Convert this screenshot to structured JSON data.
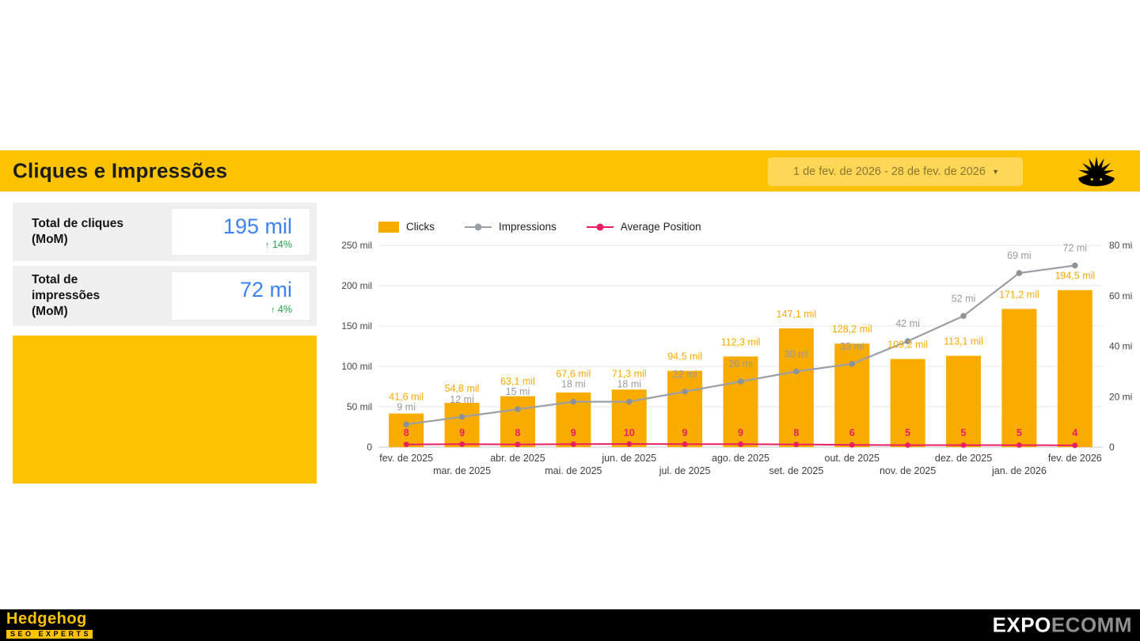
{
  "theme": {
    "yellow": "#FDC300",
    "bar_orange": "#F9AB00",
    "value_blue": "#3C82F4",
    "delta_green": "#1FA447",
    "line_gray": "#9AA0A6",
    "pink": "#E91E63"
  },
  "header": {
    "title": "Cliques e Impressões",
    "date_range": "1 de fev. de 2026 - 28 de fev. de 2026",
    "caret_icon": "▼"
  },
  "scorecards": [
    {
      "label": "Total de cliques (MoM)",
      "value": "195 mil",
      "delta_arrow": "↑",
      "delta": "14%"
    },
    {
      "label": "Total de impressões (MoM)",
      "value": "72 mi",
      "delta_arrow": "↑",
      "delta": "4%"
    }
  ],
  "legend": [
    {
      "label": "Clicks"
    },
    {
      "label": "Impressions"
    },
    {
      "label": "Average Position"
    }
  ],
  "chart_data": {
    "type": "combo",
    "categories": [
      "fev. de 2025",
      "mar. de 2025",
      "abr. de 2025",
      "mai. de 2025",
      "jun. de 2025",
      "jul. de 2025",
      "ago. de 2025",
      "set. de 2025",
      "out. de 2025",
      "nov. de 2025",
      "dez. de 2025",
      "jan. de 2026",
      "fev. de 2026"
    ],
    "series": [
      {
        "name": "Clicks",
        "type": "bar",
        "axis": "left",
        "unit": "mil",
        "values": [
          41.6,
          54.8,
          63.1,
          67.6,
          71.3,
          94.5,
          112.3,
          147.1,
          128.2,
          109.2,
          113.1,
          171.2,
          194.5
        ],
        "labels": [
          "41,6 mil",
          "54,8 mil",
          "63,1 mil",
          "67,6 mil",
          "71,3 mil",
          "94,5 mil",
          "112,3 mil",
          "147,1 mil",
          "128,2 mil",
          "109,2 mil",
          "113,1 mil",
          "171,2 mil",
          "194,5 mil"
        ]
      },
      {
        "name": "Impressions",
        "type": "line",
        "axis": "right",
        "unit": "mi",
        "values": [
          9,
          12,
          15,
          18,
          18,
          22,
          26,
          30,
          33,
          42,
          52,
          69,
          72
        ],
        "labels": [
          "9 mi",
          "12 mi",
          "15 mi",
          "18 mi",
          "18 mi",
          "22 mi",
          "26 mi",
          "30 mi",
          "33 mi",
          "42 mi",
          "52 mi",
          "69 mi",
          "72 mi"
        ]
      },
      {
        "name": "Average Position",
        "type": "line",
        "axis": "hidden",
        "values": [
          8,
          9,
          8,
          9,
          10,
          9,
          9,
          8,
          6,
          5,
          5,
          5,
          4
        ],
        "labels": [
          "8",
          "9",
          "8",
          "9",
          "10",
          "9",
          "9",
          "8",
          "6",
          "5",
          "5",
          "5",
          "4"
        ]
      }
    ],
    "left_axis": {
      "max": 250,
      "tick_values": [
        0,
        50,
        100,
        150,
        200,
        250
      ],
      "ticks": [
        "0",
        "50 mil",
        "100 mil",
        "150 mil",
        "200 mil",
        "250 mil"
      ]
    },
    "right_axis": {
      "max": 80,
      "tick_values": [
        0,
        20,
        40,
        60,
        80
      ],
      "ticks": [
        "0",
        "20 mi",
        "40 mi",
        "60 mi",
        "80 mi"
      ]
    }
  },
  "footer": {
    "brand_name": "Hedgehog",
    "brand_sub": "SEO EXPERTS",
    "expo_bold": "EXPO",
    "expo_light": "ECOMM"
  }
}
